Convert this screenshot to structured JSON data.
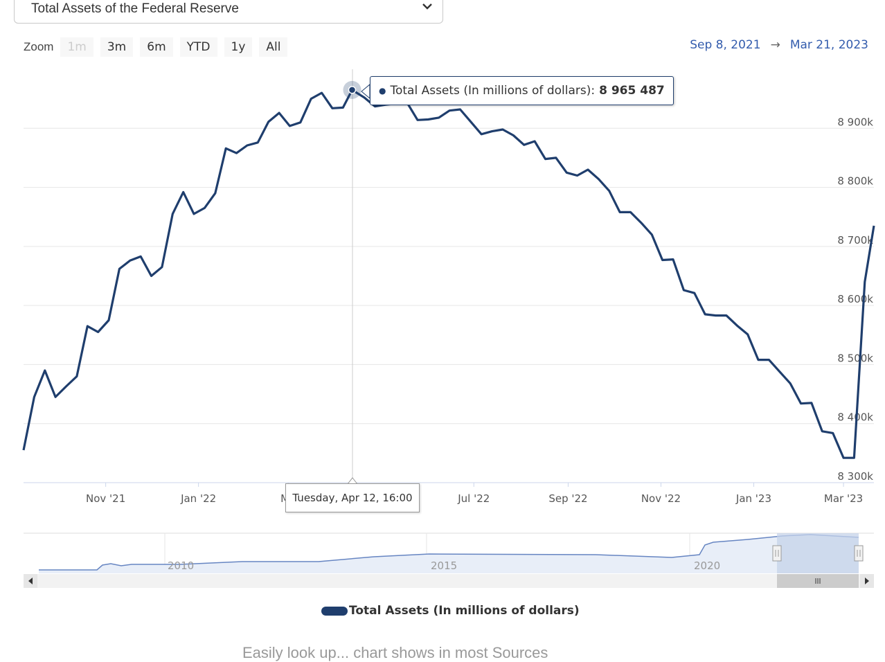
{
  "selector": {
    "value": "Total Assets of the Federal Reserve",
    "icon": "chevron-down-icon"
  },
  "zoom": {
    "label": "Zoom",
    "buttons": [
      "1m",
      "3m",
      "6m",
      "YTD",
      "1y",
      "All"
    ],
    "disabled": "1m"
  },
  "range": {
    "from": "Sep 8, 2021",
    "arrow": "→",
    "to": "Mar 21, 2023"
  },
  "tooltip": {
    "series": "Total Assets (In millions of dollars):",
    "value": "8 965 487",
    "date": "Tuesday, Apr 12, 16:00"
  },
  "legend": {
    "label": "Total Assets (In millions of dollars)"
  },
  "footer": {
    "text": "Easily look up... chart shows in most Sources"
  },
  "colors": {
    "series": "#1f3e6d",
    "navigator_fill": "#e8eef8",
    "navigator_mask": "#c6d3ea"
  },
  "chart_data": {
    "type": "line",
    "title": "",
    "ylabel": "",
    "xlabel": "",
    "ylim": [
      8300,
      9000
    ],
    "y_unit": "k",
    "y_ticks": [
      8300,
      8400,
      8500,
      8600,
      8700,
      8800,
      8900
    ],
    "y_tick_labels": [
      "8 300k",
      "8 400k",
      "8 500k",
      "8 600k",
      "8 700k",
      "8 800k",
      "8 900k"
    ],
    "x_start": "2021-09-08",
    "x_end": "2023-03-21",
    "x_ticks": [
      "2021-11-01",
      "2022-01-01",
      "2022-03-01",
      "2022-07-01",
      "2022-09-01",
      "2022-11-01",
      "2023-01-01",
      "2023-03-01"
    ],
    "x_tick_labels": [
      "Nov '21",
      "Jan '22",
      "Ma",
      "Jul '22",
      "Sep '22",
      "Nov '22",
      "Jan '23",
      "Mar '23"
    ],
    "grid": true,
    "legend_position": "bottom",
    "series": [
      {
        "name": "Total Assets (In millions of dollars)",
        "x": [
          "2021-09-08",
          "2021-09-15",
          "2021-09-22",
          "2021-09-29",
          "2021-10-06",
          "2021-10-13",
          "2021-10-20",
          "2021-10-27",
          "2021-11-03",
          "2021-11-10",
          "2021-11-17",
          "2021-11-24",
          "2021-12-01",
          "2021-12-08",
          "2021-12-15",
          "2021-12-22",
          "2021-12-29",
          "2022-01-05",
          "2022-01-12",
          "2022-01-19",
          "2022-01-26",
          "2022-02-02",
          "2022-02-09",
          "2022-02-16",
          "2022-02-23",
          "2022-03-02",
          "2022-03-09",
          "2022-03-16",
          "2022-03-23",
          "2022-03-30",
          "2022-04-06",
          "2022-04-12",
          "2022-04-20",
          "2022-04-27",
          "2022-05-04",
          "2022-05-11",
          "2022-05-18",
          "2022-05-25",
          "2022-06-01",
          "2022-06-08",
          "2022-06-15",
          "2022-06-22",
          "2022-06-29",
          "2022-07-06",
          "2022-07-13",
          "2022-07-20",
          "2022-07-27",
          "2022-08-03",
          "2022-08-10",
          "2022-08-17",
          "2022-08-24",
          "2022-08-31",
          "2022-09-07",
          "2022-09-14",
          "2022-09-21",
          "2022-09-28",
          "2022-10-05",
          "2022-10-12",
          "2022-10-19",
          "2022-10-26",
          "2022-11-02",
          "2022-11-09",
          "2022-11-16",
          "2022-11-23",
          "2022-11-30",
          "2022-12-07",
          "2022-12-14",
          "2022-12-21",
          "2022-12-28",
          "2023-01-04",
          "2023-01-11",
          "2023-01-18",
          "2023-01-25",
          "2023-02-01",
          "2023-02-08",
          "2023-02-15",
          "2023-02-22",
          "2023-03-01",
          "2023-03-08",
          "2023-03-15",
          "2023-03-21"
        ],
        "values": [
          8355,
          8445,
          8490,
          8445,
          8463,
          8480,
          8565,
          8555,
          8575,
          8662,
          8676,
          8683,
          8650,
          8665,
          8755,
          8792,
          8755,
          8765,
          8790,
          8866,
          8858,
          8871,
          8876,
          8911,
          8926,
          8904,
          8910,
          8950,
          8960,
          8934,
          8935,
          8965,
          8952,
          8937,
          8940,
          8942,
          8944,
          8914,
          8915,
          8918,
          8930,
          8932,
          8911,
          8890,
          8895,
          8898,
          8888,
          8872,
          8878,
          8848,
          8850,
          8825,
          8820,
          8830,
          8814,
          8794,
          8758,
          8758,
          8740,
          8720,
          8677,
          8678,
          8626,
          8621,
          8585,
          8583,
          8583,
          8566,
          8551,
          8508,
          8508,
          8488,
          8468,
          8434,
          8435,
          8387,
          8384,
          8342,
          8342,
          8640,
          8735
        ]
      }
    ],
    "navigator": {
      "x_labels": [
        "2010",
        "2015",
        "2020"
      ]
    }
  }
}
